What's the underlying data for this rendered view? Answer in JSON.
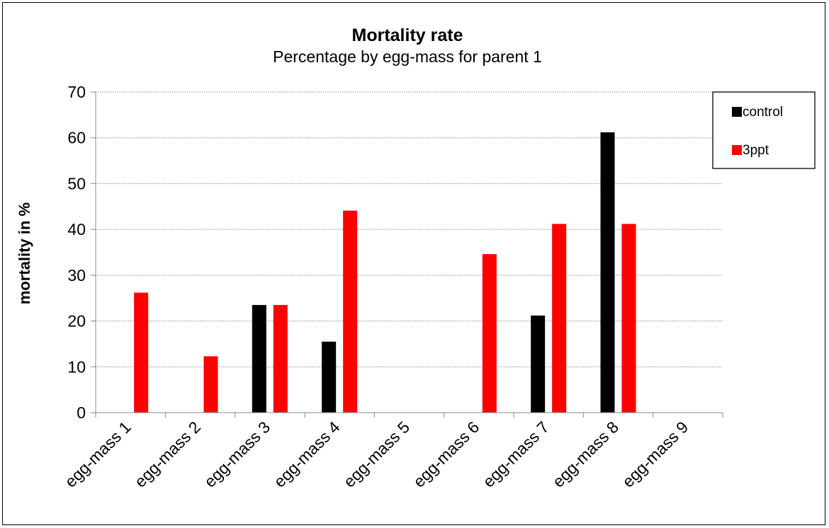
{
  "chart_data": {
    "type": "bar",
    "title": "Mortality rate",
    "subtitle": "Percentage by egg-mass for parent 1",
    "xlabel": "",
    "ylabel": "mortality in %",
    "ylim": [
      0,
      70
    ],
    "yticks": [
      0,
      10,
      20,
      30,
      40,
      50,
      60,
      70
    ],
    "grid": true,
    "legend_position": "top-right",
    "categories": [
      "egg-mass 1",
      "egg-mass 2",
      "egg-mass 3",
      "egg-mass 4",
      "egg-mass 5",
      "egg-mass 6",
      "egg-mass 7",
      "egg-mass 8",
      "egg-mass 9"
    ],
    "series": [
      {
        "name": "control",
        "color": "#000000",
        "values": [
          0,
          0,
          23.5,
          15.5,
          0,
          0,
          21.2,
          61.2,
          0
        ]
      },
      {
        "name": "3ppt",
        "color": "#ff0000",
        "values": [
          26.2,
          12.3,
          23.5,
          44.1,
          0,
          34.6,
          41.2,
          41.2,
          0
        ]
      }
    ]
  }
}
